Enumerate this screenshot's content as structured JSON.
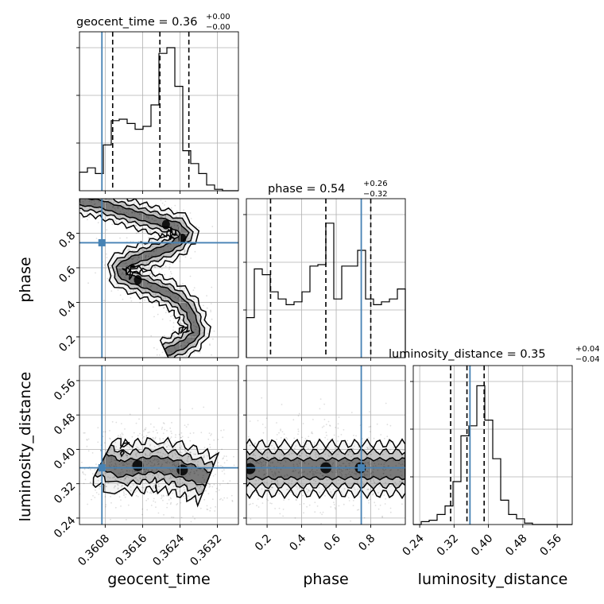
{
  "chart_data": {
    "type": "corner",
    "parameters": [
      {
        "name": "geocent_time",
        "label": "geocent_time",
        "range": [
          0.36025,
          0.36365
        ],
        "ticks": [
          0.3608,
          0.3616,
          0.3624,
          0.3632
        ],
        "tick_labels": [
          "0.3608",
          "0.3616",
          "0.3624",
          "0.3632"
        ]
      },
      {
        "name": "phase",
        "label": "phase",
        "range": [
          0.08,
          1.0
        ],
        "ticks": [
          0.2,
          0.4,
          0.6,
          0.8
        ],
        "tick_labels": [
          "0.2",
          "0.4",
          "0.6",
          "0.8"
        ]
      },
      {
        "name": "luminosity_distance",
        "label": "luminosity_distance",
        "range": [
          0.225,
          0.595
        ],
        "ticks": [
          0.24,
          0.32,
          0.4,
          0.48,
          0.56
        ],
        "tick_labels": [
          "0.24",
          "0.32",
          "0.40",
          "0.48",
          "0.56"
        ]
      }
    ],
    "titles": [
      {
        "main": "geocent_time = 0.36",
        "sup": "+0.00",
        "sub": "−0.00"
      },
      {
        "main": "phase = 0.54",
        "sup": "+0.26",
        "sub": "−0.32"
      },
      {
        "main": "luminosity_distance = 0.35",
        "sup": "+0.04",
        "sub": "−0.04"
      }
    ],
    "truth": {
      "geocent_time": 0.36073,
      "phase": 0.745,
      "luminosity_distance": 0.357
    },
    "truth_color": "#4682b4",
    "quantiles": {
      "geocent_time": [
        0.36096,
        0.36197,
        0.36259
      ],
      "phase": [
        0.22,
        0.54,
        0.8
      ],
      "luminosity_distance": [
        0.312,
        0.35,
        0.39
      ]
    },
    "histograms": {
      "geocent_time": {
        "edges_range": [
          0.36025,
          0.36365
        ],
        "bins": 20,
        "counts": [
          0.13,
          0.16,
          0.12,
          0.32,
          0.49,
          0.5,
          0.47,
          0.43,
          0.45,
          0.6,
          0.96,
          1.0,
          0.73,
          0.28,
          0.19,
          0.12,
          0.04,
          0.01,
          0.0,
          0.0
        ]
      },
      "phase": {
        "edges_range": [
          0.08,
          1.0
        ],
        "bins": 20,
        "counts": [
          0.28,
          0.62,
          0.58,
          0.46,
          0.41,
          0.37,
          0.39,
          0.46,
          0.64,
          0.65,
          0.94,
          0.41,
          0.64,
          0.64,
          0.75,
          0.41,
          0.37,
          0.39,
          0.41,
          0.48
        ]
      },
      "luminosity_distance": {
        "edges_range": [
          0.225,
          0.595
        ],
        "bins": 20,
        "counts": [
          0.0,
          0.02,
          0.03,
          0.07,
          0.13,
          0.3,
          0.62,
          0.69,
          0.97,
          0.73,
          0.46,
          0.17,
          0.07,
          0.04,
          0.01,
          0.0,
          0.0,
          0.0,
          0.0,
          0.0
        ]
      }
    },
    "contours": {
      "phase_vs_geocent_time": {
        "ridge": [
          [
            0.36025,
            0.985
          ],
          [
            0.3607,
            0.97
          ],
          [
            0.3611,
            0.935
          ],
          [
            0.3616,
            0.895
          ],
          [
            0.362,
            0.865
          ],
          [
            0.36235,
            0.84
          ],
          [
            0.3625,
            0.8
          ],
          [
            0.3624,
            0.76
          ],
          [
            0.3622,
            0.72
          ],
          [
            0.3618,
            0.68
          ],
          [
            0.3614,
            0.645
          ],
          [
            0.3611,
            0.6
          ],
          [
            0.3612,
            0.55
          ],
          [
            0.3616,
            0.51
          ],
          [
            0.3621,
            0.46
          ],
          [
            0.3624,
            0.41
          ],
          [
            0.3626,
            0.35
          ],
          [
            0.3627,
            0.28
          ],
          [
            0.36275,
            0.22
          ],
          [
            0.3625,
            0.16
          ],
          [
            0.3621,
            0.11
          ]
        ],
        "half_widths": [
          8e-05,
          0.00017,
          0.00028
        ],
        "cores": [
          [
            0.36245,
            0.77
          ],
          [
            0.3615,
            0.53
          ],
          [
            0.3621,
            0.85
          ]
        ]
      },
      "luminosity_distance_vs_geocent_time": {
        "ridge": [
          [
            0.36075,
            0.375
          ],
          [
            0.3611,
            0.355
          ],
          [
            0.3615,
            0.36
          ],
          [
            0.3619,
            0.365
          ],
          [
            0.3623,
            0.357
          ],
          [
            0.36265,
            0.345
          ],
          [
            0.363,
            0.33
          ]
        ],
        "half_widths": [
          0.018,
          0.036,
          0.056
        ],
        "cores": [
          [
            0.3615,
            0.362
          ],
          [
            0.36245,
            0.352
          ]
        ]
      },
      "luminosity_distance_vs_phase": {
        "band_center": 0.355,
        "half_widths": [
          0.022,
          0.04,
          0.058
        ],
        "cores": [
          [
            0.1,
            0.355
          ],
          [
            0.54,
            0.357
          ],
          [
            0.74,
            0.357
          ]
        ]
      }
    },
    "grid": true
  }
}
